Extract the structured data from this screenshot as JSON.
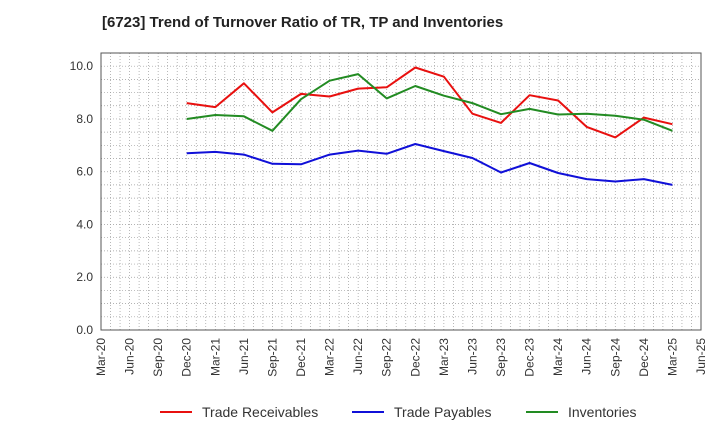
{
  "chart_data": {
    "type": "line",
    "title": "[6723]  Trend of Turnover Ratio of TR, TP and Inventories",
    "xlabel": "",
    "ylabel": "",
    "ylim": [
      0,
      10.5
    ],
    "yticks": [
      "0.0",
      "2.0",
      "4.0",
      "6.0",
      "8.0",
      "10.0"
    ],
    "grid": true,
    "legend_position": "bottom",
    "x_tick_labels": [
      "Mar-20",
      "Jun-20",
      "Sep-20",
      "Dec-20",
      "Mar-21",
      "Jun-21",
      "Sep-21",
      "Dec-21",
      "Mar-22",
      "Jun-22",
      "Sep-22",
      "Dec-22",
      "Mar-23",
      "Jun-23",
      "Sep-23",
      "Dec-23",
      "Mar-24",
      "Jun-24",
      "Sep-24",
      "Dec-24",
      "Mar-25",
      "Jun-25"
    ],
    "x": [
      "Dec-20",
      "Mar-21",
      "Jun-21",
      "Sep-21",
      "Dec-21",
      "Mar-22",
      "Jun-22",
      "Sep-22",
      "Dec-22",
      "Mar-23",
      "Jun-23",
      "Sep-23",
      "Dec-23",
      "Mar-24",
      "Jun-24",
      "Sep-24",
      "Dec-24",
      "Mar-25"
    ],
    "series": [
      {
        "name": "Trade Receivables",
        "color": "#e8100f",
        "values": [
          8.6,
          8.45,
          9.35,
          8.25,
          8.95,
          8.85,
          9.15,
          9.2,
          9.95,
          9.6,
          8.2,
          7.85,
          8.9,
          8.7,
          7.7,
          7.3,
          8.05,
          7.8
        ]
      },
      {
        "name": "Trade Payables",
        "color": "#1010d8",
        "values": [
          6.7,
          6.75,
          6.65,
          6.3,
          6.28,
          6.65,
          6.8,
          6.68,
          7.05,
          6.78,
          6.52,
          5.97,
          6.33,
          5.95,
          5.72,
          5.63,
          5.72,
          5.5
        ]
      },
      {
        "name": "Inventories",
        "color": "#228b22",
        "values": [
          8.0,
          8.15,
          8.1,
          7.55,
          8.75,
          9.45,
          9.7,
          8.78,
          9.25,
          8.88,
          8.6,
          8.18,
          8.38,
          8.17,
          8.2,
          8.12,
          7.97,
          7.55
        ]
      }
    ]
  }
}
